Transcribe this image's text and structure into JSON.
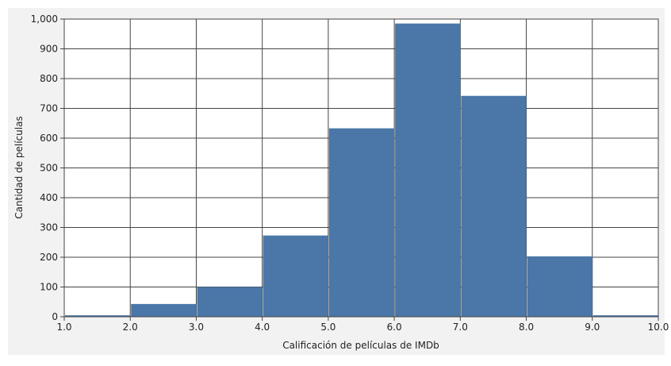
{
  "chart_data": {
    "type": "bar",
    "title": "",
    "xlabel": "Calificación de películas de IMDb",
    "ylabel": "Cantidad de películas",
    "bin_edges": [
      1,
      2,
      3,
      4,
      5,
      6,
      7,
      8,
      9,
      10
    ],
    "values": [
      5,
      43,
      100,
      273,
      633,
      985,
      742,
      203,
      5
    ],
    "x_ticks": [
      "1.0",
      "2.0",
      "3.0",
      "4.0",
      "5.0",
      "6.0",
      "7.0",
      "8.0",
      "9.0",
      "10.0"
    ],
    "y_ticks": [
      "0",
      "100",
      "200",
      "300",
      "400",
      "500",
      "600",
      "700",
      "800",
      "900",
      "1,000"
    ],
    "xlim": [
      1,
      10
    ],
    "ylim": [
      0,
      1000
    ],
    "grid": true,
    "bar_color": "#4a77a8",
    "background_color": "#f2f2f2",
    "grid_color": "#444444"
  }
}
